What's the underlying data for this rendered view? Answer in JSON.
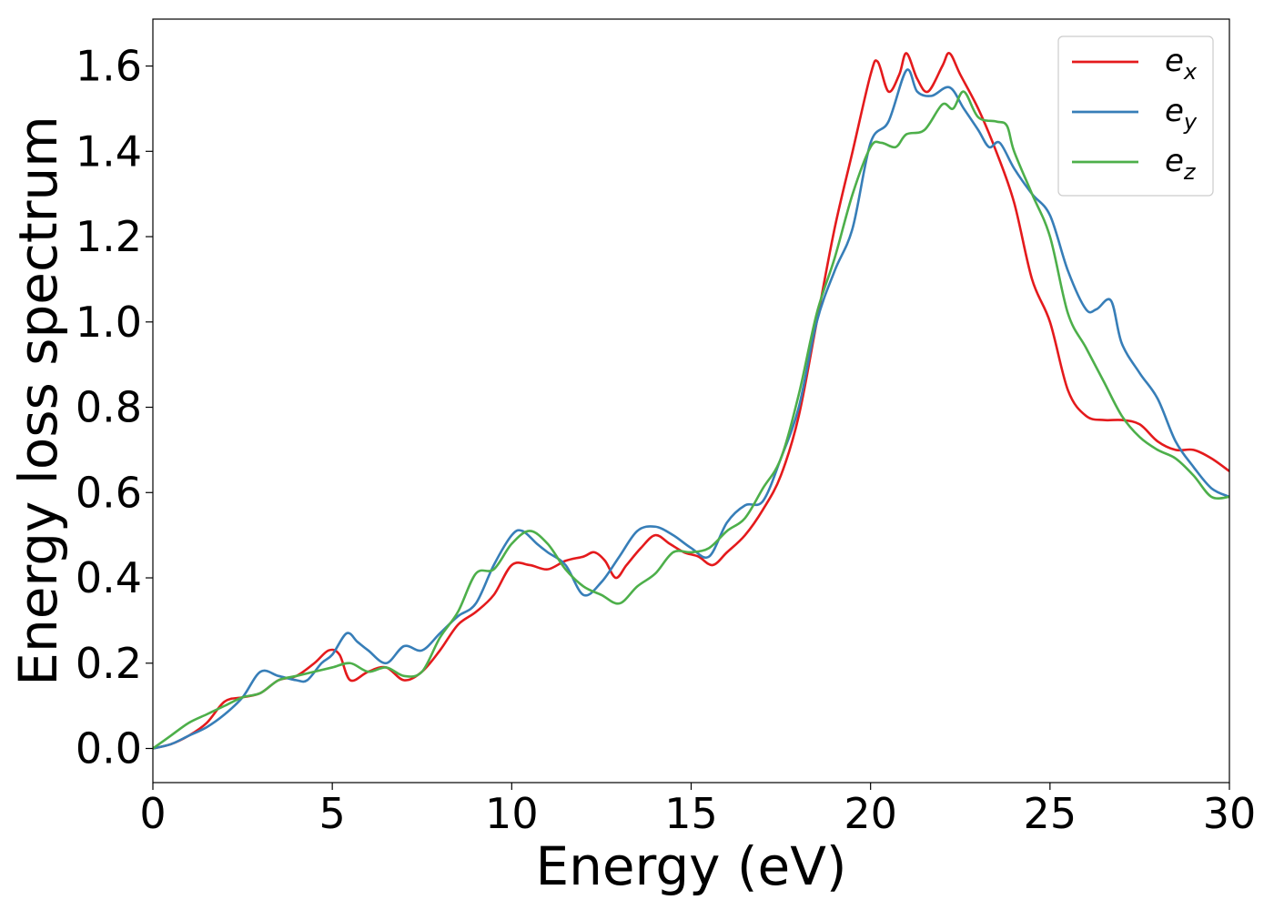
{
  "chart_data": {
    "type": "line",
    "title": "",
    "xlabel": "Energy (eV)",
    "ylabel": "Energy loss spectrum",
    "xlim": [
      0,
      30
    ],
    "ylim": [
      -0.08,
      1.71
    ],
    "xticks": [
      "0",
      "5",
      "10",
      "15",
      "20",
      "25",
      "30"
    ],
    "yticks": [
      "0.0",
      "0.2",
      "0.4",
      "0.6",
      "0.8",
      "1.0",
      "1.2",
      "1.4",
      "1.6"
    ],
    "grid": false,
    "legend_position": "top-right",
    "series": [
      {
        "name": "e_x",
        "label_base": "e",
        "label_sub": "x",
        "color": "#e41a1c",
        "x": [
          0,
          0.5,
          1,
          1.5,
          2,
          2.5,
          3,
          3.5,
          4,
          4.5,
          4.9,
          5.2,
          5.5,
          6,
          6.5,
          7,
          7.5,
          8,
          8.5,
          9,
          9.5,
          10,
          10.5,
          11,
          11.5,
          12,
          12.3,
          12.6,
          12.9,
          13.2,
          13.6,
          14,
          14.4,
          14.8,
          15.2,
          15.6,
          16,
          16.5,
          17,
          17.5,
          18,
          18.5,
          19,
          19.5,
          20,
          20.2,
          20.5,
          20.8,
          21,
          21.3,
          21.6,
          22,
          22.2,
          22.5,
          23,
          23.5,
          24,
          24.5,
          25,
          25.5,
          26,
          26.5,
          27,
          27.5,
          28,
          28.5,
          29,
          29.5,
          30
        ],
        "y": [
          0,
          0.01,
          0.03,
          0.06,
          0.11,
          0.12,
          0.13,
          0.16,
          0.17,
          0.2,
          0.23,
          0.22,
          0.16,
          0.18,
          0.19,
          0.16,
          0.18,
          0.23,
          0.29,
          0.32,
          0.36,
          0.43,
          0.43,
          0.42,
          0.44,
          0.45,
          0.46,
          0.44,
          0.4,
          0.43,
          0.47,
          0.5,
          0.48,
          0.46,
          0.45,
          0.43,
          0.46,
          0.5,
          0.56,
          0.64,
          0.78,
          1.0,
          1.22,
          1.4,
          1.58,
          1.61,
          1.54,
          1.58,
          1.63,
          1.57,
          1.54,
          1.6,
          1.63,
          1.58,
          1.5,
          1.4,
          1.28,
          1.1,
          1.0,
          0.84,
          0.78,
          0.77,
          0.77,
          0.76,
          0.72,
          0.7,
          0.7,
          0.68,
          0.65
        ]
      },
      {
        "name": "e_y",
        "label_base": "e",
        "label_sub": "y",
        "color": "#377eb8",
        "x": [
          0,
          0.5,
          1,
          1.5,
          2,
          2.5,
          3,
          3.5,
          4,
          4.3,
          4.7,
          5,
          5.4,
          5.7,
          6,
          6.5,
          7,
          7.5,
          8,
          8.5,
          9,
          9.5,
          10,
          10.3,
          10.7,
          11,
          11.5,
          12,
          12.5,
          13,
          13.5,
          14,
          14.5,
          15,
          15.5,
          16,
          16.5,
          17,
          17.5,
          18,
          18.5,
          19,
          19.5,
          20,
          20.5,
          21,
          21.3,
          21.7,
          22.2,
          22.6,
          23,
          23.3,
          23.6,
          24,
          24.5,
          25,
          25.5,
          26,
          26.3,
          26.7,
          27,
          27.5,
          28,
          28.5,
          29,
          29.5,
          30
        ],
        "y": [
          0,
          0.01,
          0.03,
          0.05,
          0.08,
          0.12,
          0.18,
          0.17,
          0.16,
          0.16,
          0.2,
          0.22,
          0.27,
          0.25,
          0.23,
          0.2,
          0.24,
          0.23,
          0.27,
          0.31,
          0.34,
          0.43,
          0.5,
          0.51,
          0.48,
          0.46,
          0.43,
          0.36,
          0.39,
          0.45,
          0.51,
          0.52,
          0.5,
          0.47,
          0.45,
          0.53,
          0.57,
          0.58,
          0.68,
          0.8,
          1.0,
          1.12,
          1.22,
          1.42,
          1.47,
          1.59,
          1.54,
          1.53,
          1.55,
          1.5,
          1.45,
          1.41,
          1.42,
          1.36,
          1.3,
          1.25,
          1.12,
          1.03,
          1.03,
          1.05,
          0.95,
          0.88,
          0.82,
          0.72,
          0.66,
          0.61,
          0.59
        ]
      },
      {
        "name": "e_z",
        "label_base": "e",
        "label_sub": "z",
        "color": "#4daf4a",
        "x": [
          0,
          0.5,
          1,
          1.5,
          2,
          2.5,
          3,
          3.5,
          4,
          4.5,
          5,
          5.5,
          6,
          6.5,
          7,
          7.5,
          8,
          8.5,
          9,
          9.5,
          10,
          10.5,
          11,
          11.5,
          12,
          12.5,
          13,
          13.5,
          14,
          14.5,
          15,
          15.5,
          16,
          16.5,
          17,
          17.5,
          18,
          18.5,
          19,
          19.5,
          20,
          20.3,
          20.7,
          21,
          21.5,
          22,
          22.3,
          22.6,
          23,
          23.5,
          23.8,
          24,
          24.5,
          25,
          25.5,
          26,
          26.5,
          27,
          27.5,
          28,
          28.5,
          29,
          29.5,
          30
        ],
        "y": [
          0,
          0.03,
          0.06,
          0.08,
          0.1,
          0.12,
          0.13,
          0.16,
          0.17,
          0.18,
          0.19,
          0.2,
          0.18,
          0.19,
          0.17,
          0.18,
          0.26,
          0.32,
          0.41,
          0.42,
          0.48,
          0.51,
          0.48,
          0.42,
          0.38,
          0.36,
          0.34,
          0.38,
          0.41,
          0.46,
          0.46,
          0.47,
          0.51,
          0.54,
          0.61,
          0.68,
          0.83,
          1.02,
          1.15,
          1.3,
          1.41,
          1.42,
          1.41,
          1.44,
          1.45,
          1.51,
          1.5,
          1.54,
          1.48,
          1.47,
          1.46,
          1.4,
          1.3,
          1.2,
          1.02,
          0.94,
          0.86,
          0.78,
          0.73,
          0.7,
          0.68,
          0.64,
          0.59,
          0.59
        ]
      }
    ]
  }
}
